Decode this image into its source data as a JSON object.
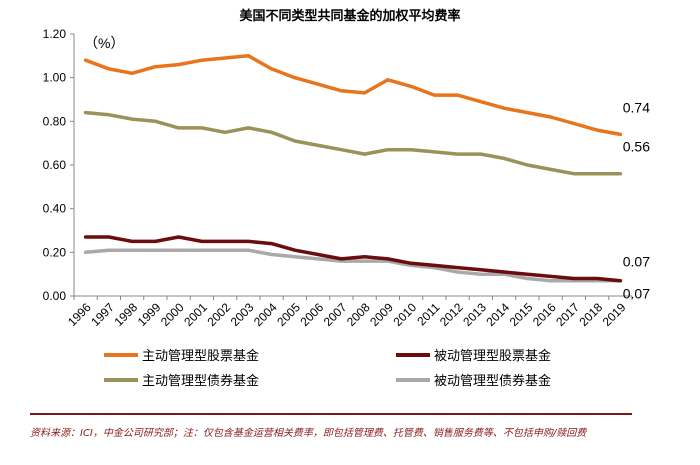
{
  "chart_data": {
    "type": "line",
    "title": "美国不同类型共同基金的加权平均费率",
    "unit_label": "（%）",
    "x": [
      "1996",
      "1997",
      "1998",
      "1999",
      "2000",
      "2001",
      "2002",
      "2003",
      "2004",
      "2005",
      "2006",
      "2007",
      "2008",
      "2009",
      "2010",
      "2011",
      "2012",
      "2013",
      "2014",
      "2015",
      "2016",
      "2017",
      "2018",
      "2019"
    ],
    "ylim": [
      0,
      1.2
    ],
    "yticks": [
      "0.00",
      "0.20",
      "0.40",
      "0.60",
      "0.80",
      "1.00",
      "1.20"
    ],
    "series": [
      {
        "name": "主动管理型股票基金",
        "color": "#e8741c",
        "values": [
          1.08,
          1.04,
          1.02,
          1.05,
          1.06,
          1.08,
          1.09,
          1.1,
          1.04,
          1.0,
          0.97,
          0.94,
          0.93,
          0.99,
          0.96,
          0.92,
          0.92,
          0.89,
          0.86,
          0.84,
          0.82,
          0.79,
          0.76,
          0.74
        ],
        "end_label": "0.74"
      },
      {
        "name": "被动管理型股票基金",
        "color": "#6b0d0d",
        "values": [
          0.27,
          0.27,
          0.25,
          0.25,
          0.27,
          0.25,
          0.25,
          0.25,
          0.24,
          0.21,
          0.19,
          0.17,
          0.18,
          0.17,
          0.15,
          0.14,
          0.13,
          0.12,
          0.11,
          0.1,
          0.09,
          0.08,
          0.08,
          0.07
        ],
        "end_label": "0.07"
      },
      {
        "name": "主动管理型债券基金",
        "color": "#9a9258",
        "values": [
          0.84,
          0.83,
          0.81,
          0.8,
          0.77,
          0.77,
          0.75,
          0.77,
          0.75,
          0.71,
          0.69,
          0.67,
          0.65,
          0.67,
          0.67,
          0.66,
          0.65,
          0.65,
          0.63,
          0.6,
          0.58,
          0.56,
          0.56,
          0.56
        ],
        "end_label": "0.56"
      },
      {
        "name": "被动管理型债券基金",
        "color": "#a9a9a9",
        "values": [
          0.2,
          0.21,
          0.21,
          0.21,
          0.21,
          0.21,
          0.21,
          0.21,
          0.19,
          0.18,
          0.17,
          0.16,
          0.16,
          0.16,
          0.14,
          0.13,
          0.11,
          0.1,
          0.1,
          0.08,
          0.07,
          0.07,
          0.07,
          0.07
        ],
        "end_label": "0.07"
      }
    ],
    "legend_position": "bottom",
    "grid": false
  },
  "source_note": "资料来源：ICI，中金公司研究部；注：仅包含基金运营相关费率，即包括管理费、托管费、销售服务费等、不包括申购/赎回费"
}
